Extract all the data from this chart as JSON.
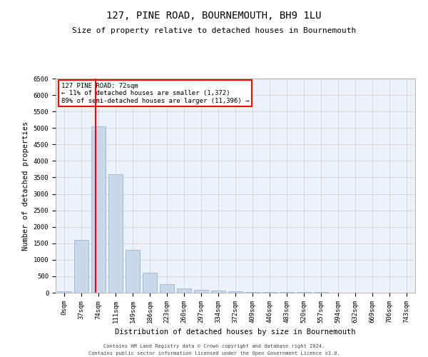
{
  "title": "127, PINE ROAD, BOURNEMOUTH, BH9 1LU",
  "subtitle": "Size of property relative to detached houses in Bournemouth",
  "xlabel": "Distribution of detached houses by size in Bournemouth",
  "ylabel": "Number of detached properties",
  "footer1": "Contains HM Land Registry data © Crown copyright and database right 2024.",
  "footer2": "Contains public sector information licensed under the Open Government Licence v3.0.",
  "categories": [
    "0sqm",
    "37sqm",
    "74sqm",
    "111sqm",
    "149sqm",
    "186sqm",
    "223sqm",
    "260sqm",
    "297sqm",
    "334sqm",
    "372sqm",
    "409sqm",
    "446sqm",
    "483sqm",
    "520sqm",
    "557sqm",
    "594sqm",
    "632sqm",
    "669sqm",
    "706sqm",
    "743sqm"
  ],
  "values": [
    50,
    1600,
    5050,
    3600,
    1300,
    600,
    270,
    120,
    80,
    60,
    35,
    30,
    25,
    20,
    15,
    12,
    10,
    8,
    6,
    5,
    4
  ],
  "bar_color": "#c8d8e8",
  "bar_edge_color": "#8ab0cc",
  "grid_color": "#c8d0dc",
  "bg_color": "#eef2f8",
  "red_line_x": 1.85,
  "annotation_title": "127 PINE ROAD: 72sqm",
  "annotation_line1": "← 11% of detached houses are smaller (1,372)",
  "annotation_line2": "89% of semi-detached houses are larger (11,396) →",
  "ylim": [
    0,
    6500
  ],
  "yticks": [
    0,
    500,
    1000,
    1500,
    2000,
    2500,
    3000,
    3500,
    4000,
    4500,
    5000,
    5500,
    6000,
    6500
  ]
}
